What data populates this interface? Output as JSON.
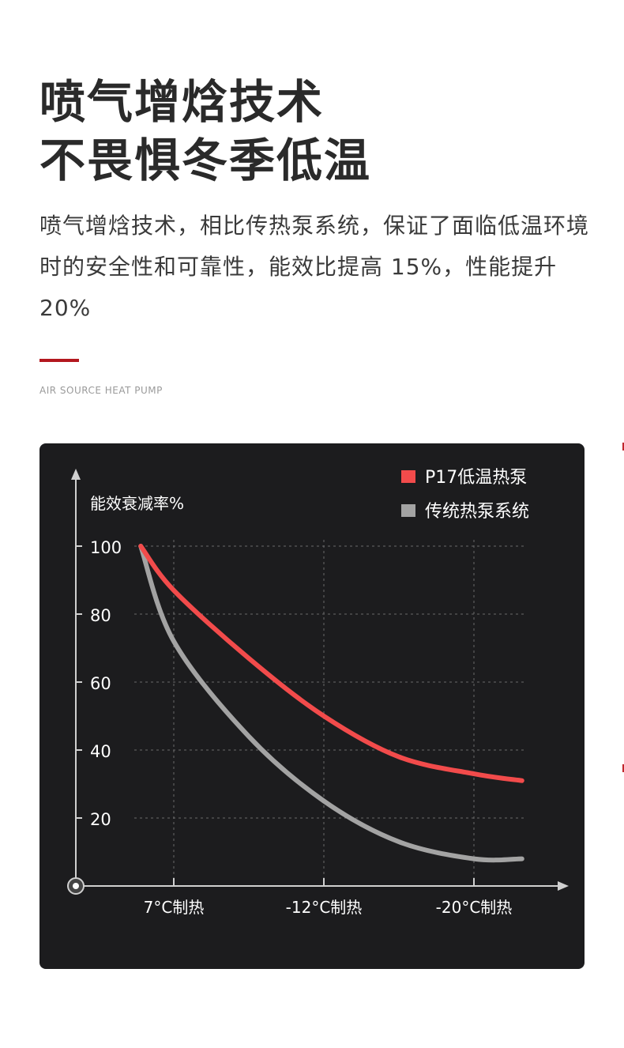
{
  "headline": {
    "line1": "喷气增焓技术",
    "line2": "不畏惧冬季低温"
  },
  "description": "喷气增焓技术，相比传热泵系统，保证了面临低温环境时的安全性和可靠性，能效比提高 15%，性能提升 20%",
  "tagline": "AIR SOURCE HEAT PUMP",
  "colors": {
    "accent": "#b3171e",
    "card_bg": "#1c1c1e",
    "series_p17": "#f24b4b",
    "series_traditional": "#a3a3a3"
  },
  "chart_data": {
    "type": "line",
    "title": "",
    "ylabel": "能效衰减率%",
    "xlabel": "",
    "categories": [
      "7°C制热",
      "-12°C制热",
      "-20°C制热"
    ],
    "y_ticks": [
      20,
      40,
      60,
      80,
      100
    ],
    "ylim": [
      0,
      100
    ],
    "grid": true,
    "legend_position": "top-right",
    "series": [
      {
        "name": "P17低温热泵",
        "color": "#f24b4b",
        "points": [
          [
            -0.22,
            100
          ],
          [
            0,
            87
          ],
          [
            0.5,
            67
          ],
          [
            1,
            50
          ],
          [
            1.5,
            38
          ],
          [
            2,
            33
          ],
          [
            2.32,
            31
          ]
        ]
      },
      {
        "name": "传统热泵系统",
        "color": "#a3a3a3",
        "points": [
          [
            -0.22,
            100
          ],
          [
            0,
            72
          ],
          [
            0.5,
            44
          ],
          [
            1,
            25
          ],
          [
            1.5,
            13
          ],
          [
            2,
            8
          ],
          [
            2.32,
            8
          ]
        ]
      }
    ]
  }
}
